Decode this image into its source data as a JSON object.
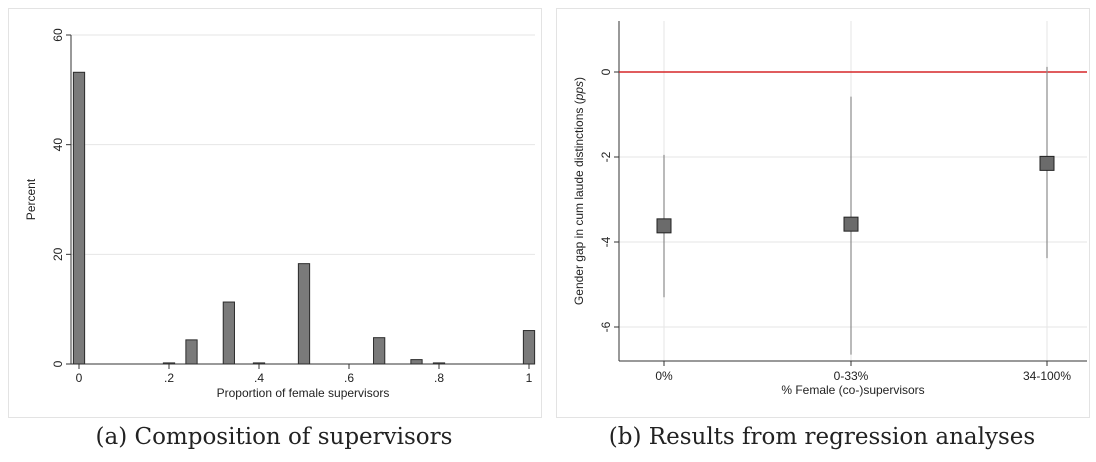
{
  "captions": {
    "a": "(a) Composition of supervisors",
    "b": "(b) Results from regression analyses"
  },
  "chart_data": [
    {
      "type": "bar",
      "title": "",
      "xlabel": "Proportion of female supervisors",
      "ylabel": "Percent",
      "xlim": [
        0,
        1
      ],
      "ylim": [
        0,
        60
      ],
      "x_ticks": [
        0,
        0.2,
        0.4,
        0.6,
        0.8,
        1
      ],
      "x_tick_labels": [
        "0",
        ".2",
        ".4",
        ".6",
        ".8",
        "1"
      ],
      "y_ticks": [
        0,
        20,
        40,
        60
      ],
      "y_tick_labels": [
        "0",
        "20",
        "40",
        "60"
      ],
      "grid": true,
      "bar_width": 0.025,
      "x": [
        0,
        0.2,
        0.25,
        0.333,
        0.4,
        0.5,
        0.667,
        0.75,
        0.8,
        1
      ],
      "values": [
        53.2,
        0.2,
        4.4,
        11.3,
        0.2,
        18.3,
        4.8,
        0.8,
        0.2,
        6.1
      ]
    },
    {
      "type": "scatter",
      "title": "",
      "xlabel": "% Female (co-)supervisors",
      "ylabel_prefix": "Gender gap in cum laude distinctions (",
      "ylabel_italic": "pps",
      "ylabel_suffix": ")",
      "categories": [
        "0%",
        "0-33%",
        "34-100%"
      ],
      "ylim": [
        -6.8,
        1.2
      ],
      "y_ticks": [
        0,
        -2,
        -4,
        -6
      ],
      "y_tick_labels": [
        "0",
        "-2",
        "-4",
        "-6"
      ],
      "grid": true,
      "reference_line": {
        "y": 0,
        "color": "#d62728"
      },
      "estimates": [
        -3.62,
        -3.58,
        -2.15
      ],
      "ci_low": [
        -5.3,
        -6.65,
        -4.38
      ],
      "ci_high": [
        -1.95,
        -0.58,
        0.12
      ],
      "marker_color": "#6b6b6b"
    }
  ]
}
